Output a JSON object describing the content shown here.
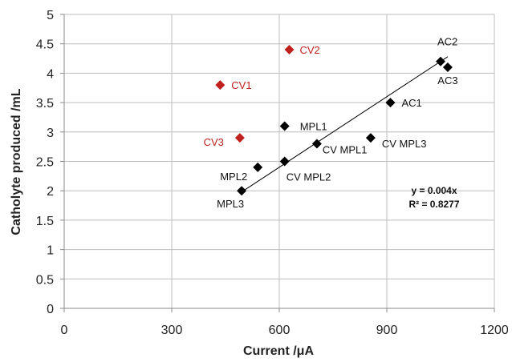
{
  "chart_data": {
    "type": "scatter",
    "xlabel": "Current /μA",
    "ylabel": "Catholyte produced /mL",
    "xlim": [
      0,
      1200
    ],
    "ylim": [
      0,
      5
    ],
    "x_ticks": [
      "0",
      "300",
      "600",
      "900",
      "1200"
    ],
    "y_ticks": [
      "0",
      "0.5",
      "1",
      "1.5",
      "2",
      "2.5",
      "3",
      "3.5",
      "4",
      "4.5",
      "5"
    ],
    "grid": true,
    "series": [
      {
        "color": "#000000",
        "marker": "diamond",
        "points": [
          {
            "label": "AC2",
            "x": 1050,
            "y": 4.2
          },
          {
            "label": "AC3",
            "x": 1070,
            "y": 4.1
          },
          {
            "label": "AC1",
            "x": 910,
            "y": 3.5
          },
          {
            "label": "MPL1",
            "x": 615,
            "y": 3.1
          },
          {
            "label": "CV MPL3",
            "x": 855,
            "y": 2.9
          },
          {
            "label": "CV MPL1",
            "x": 705,
            "y": 2.8
          },
          {
            "label": "CV MPL2",
            "x": 615,
            "y": 2.5
          },
          {
            "label": "MPL2",
            "x": 540,
            "y": 2.4
          },
          {
            "label": "MPL3",
            "x": 495,
            "y": 2.0
          }
        ]
      },
      {
        "color": "#c0201e",
        "marker": "diamond",
        "points": [
          {
            "label": "CV2",
            "x": 628,
            "y": 4.4
          },
          {
            "label": "CV1",
            "x": 435,
            "y": 3.8
          },
          {
            "label": "CV3",
            "x": 490,
            "y": 2.9
          }
        ]
      }
    ],
    "trendline": {
      "slope": 0.004,
      "x_from": 495,
      "x_to": 1070,
      "color": "#000000"
    },
    "annotations": [
      "y = 0.004x",
      "R² = 0.8277"
    ]
  }
}
